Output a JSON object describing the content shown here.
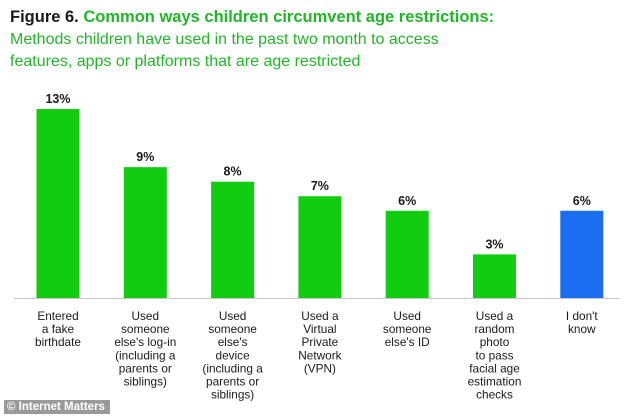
{
  "title": {
    "label": "Figure 6.",
    "heading": "Common ways children circumvent age restrictions:",
    "subtitle_line1": "Methods children have used in the past two month to access",
    "subtitle_line2": "features, apps or platforms that are age restricted"
  },
  "watermark": "© Internet Matters",
  "colors": {
    "green": "#11cc11",
    "blue": "#1a6ef2",
    "title_green": "#22b52a",
    "text": "#1a1a1a"
  },
  "chart_data": {
    "type": "bar",
    "categories": [
      [
        "Entered",
        "a fake",
        "birthdate"
      ],
      [
        "Used",
        "someone",
        "else's log-in",
        "(including a",
        "parents or",
        "siblings)"
      ],
      [
        "Used",
        "someone",
        "else's",
        "device",
        "(including a",
        "parents or",
        "siblings)"
      ],
      [
        "Used a",
        "Virtual",
        "Private",
        "Network",
        "(VPN)"
      ],
      [
        "Used",
        "someone",
        "else's ID"
      ],
      [
        "Used a",
        "random",
        "photo",
        "to pass",
        "facial age",
        "estimation",
        "checks"
      ],
      [
        "I don't",
        "know"
      ]
    ],
    "values": [
      13,
      9,
      8,
      7,
      6,
      3,
      6
    ],
    "value_labels": [
      "13%",
      "9%",
      "8%",
      "7%",
      "6%",
      "3%",
      "6%"
    ],
    "bar_colors": [
      "#11cc11",
      "#11cc11",
      "#11cc11",
      "#11cc11",
      "#11cc11",
      "#11cc11",
      "#1a6ef2"
    ],
    "ylim": [
      0,
      14
    ],
    "grid": false,
    "legend": "none"
  }
}
